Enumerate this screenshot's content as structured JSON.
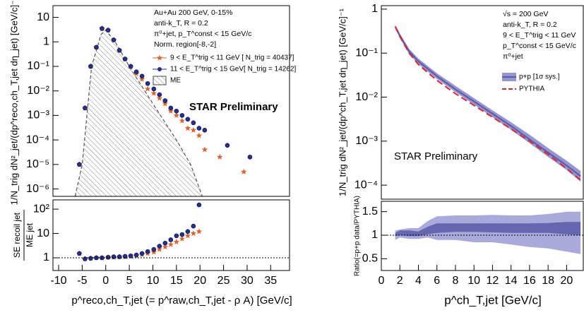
{
  "chart_data": [
    {
      "type": "scatter",
      "log_y": true,
      "xlim": [
        -11.2,
        39
      ],
      "ylim": [
        5e-07,
        30
      ],
      "ylabel": [
        "1/N_trig dN²_jet/(dp^reco,ch_T,jet dη_jet) [GeV/c]⁻¹"
      ],
      "yticks": [
        {
          "value": 1e-06,
          "label": "10⁻⁶"
        },
        {
          "value": 1e-05,
          "label": "10⁻⁵"
        },
        {
          "value": 0.0001,
          "label": "10⁻⁴"
        },
        {
          "value": 0.001,
          "label": "10⁻³"
        },
        {
          "value": 0.01,
          "label": "10⁻²"
        },
        {
          "value": 0.1,
          "label": "10⁻¹"
        },
        1,
        10
      ],
      "annotations": [
        "Au+Au 200 GeV, 0-15%",
        "anti-k_T, R = 0.2",
        "π⁰+jet, p_T^const < 15 GeV/c",
        "Norm. region[-8,-2]"
      ],
      "watermark": {
        "text": "STAR Preliminary",
        "color": "#f26b6b"
      },
      "series": [
        {
          "name": "ME",
          "type": "area",
          "color": "#555555",
          "x": [
            -6.5,
            -5,
            -3,
            -1,
            0,
            2,
            5,
            10,
            15,
            18,
            20.5
          ],
          "values": [
            5e-07,
            1e-05,
            0.1,
            2,
            3,
            1,
            0.1,
            0.003,
            0.0001,
            1e-05,
            5e-07
          ]
        },
        {
          "name": "9 < E_T^trig < 11 GeV [ N_trig = 40437]",
          "type": "scatter",
          "marker": "star",
          "color": "#e0602b",
          "x": [
            -5.6,
            -4.4,
            -3.2,
            -2,
            -0.8,
            0.5,
            1.7,
            2.9,
            4.1,
            5.3,
            6.5,
            7.7,
            8.9,
            10.2,
            11.4,
            12.6,
            13.8,
            15,
            16.2,
            17.4,
            18.6,
            19.8,
            21,
            24.2,
            29.3
          ],
          "values": [
            1e-05,
            0.002,
            0.1,
            0.6,
            3.5,
            3,
            1.2,
            0.45,
            0.2,
            0.1,
            0.05,
            0.03,
            0.012,
            0.008,
            0.005,
            0.003,
            0.0015,
            0.001,
            0.0006,
            0.0003,
            0.00025,
            0.00015,
            4e-05,
            2e-05,
            5e-06
          ]
        },
        {
          "name": "11 < E_T^trig < 15 GeV[ N_trig = 14262]",
          "type": "scatter",
          "marker": "circle",
          "color": "#1f2fa0",
          "x": [
            -5.6,
            -4.4,
            -3.2,
            -2,
            -0.8,
            0.5,
            1.7,
            2.9,
            4.1,
            5.3,
            6.5,
            7.7,
            8.9,
            10.2,
            11.4,
            12.6,
            13.8,
            15,
            16.2,
            17.4,
            18.6,
            19.8,
            21,
            25.8,
            30.6
          ],
          "values": [
            1e-05,
            0.002,
            0.1,
            0.6,
            3.5,
            3,
            1.2,
            0.45,
            0.2,
            0.1,
            0.06,
            0.04,
            0.02,
            0.012,
            0.007,
            0.004,
            0.002,
            0.0015,
            0.001,
            0.0007,
            0.0005,
            0.0003,
            0.00025,
            6e-05,
            2e-05
          ]
        }
      ]
    },
    {
      "type": "scatter",
      "log_y": true,
      "xlim": [
        -11.2,
        39
      ],
      "ylim": [
        0.3,
        240
      ],
      "hline": 1,
      "ylabel": [
        "SE recoil jet",
        "ME jet"
      ],
      "xlabel": "p^reco,ch_T,jet (= p^raw,ch_T,jet - ρ A) [GeV/c]",
      "xticks": [
        -10,
        -5,
        0,
        5,
        10,
        15,
        20,
        25,
        30,
        35
      ],
      "yticks": [
        1,
        10,
        {
          "value": 100,
          "label": "10²"
        }
      ],
      "series": [
        {
          "type": "scatter",
          "marker": "star",
          "color": "#e0602b",
          "x": [
            -5.6,
            -4.4,
            -3.2,
            -2,
            -0.8,
            0.5,
            1.7,
            2.9,
            4.1,
            5.3,
            6.5,
            7.7,
            8.9,
            10.2,
            11.4,
            12.6,
            13.8,
            15,
            16.2,
            17.4,
            18.6,
            19.8
          ],
          "values": [
            1.5,
            0.9,
            0.95,
            1,
            1,
            1.05,
            1.05,
            1.1,
            1.1,
            1.15,
            1.25,
            1.35,
            1.5,
            1.7,
            2.2,
            2.8,
            3.5,
            4.5,
            6,
            8,
            10,
            12
          ]
        },
        {
          "type": "scatter",
          "marker": "circle",
          "color": "#1f2fa0",
          "x": [
            -5.6,
            -4.4,
            -3.2,
            -2,
            -0.8,
            0.5,
            1.7,
            2.9,
            4.1,
            5.3,
            6.5,
            7.7,
            8.9,
            10.2,
            11.4,
            12.6,
            13.8,
            15,
            16.2,
            17.4,
            18.6,
            19.8
          ],
          "values": [
            1.5,
            0.9,
            0.95,
            1,
            1,
            1.05,
            1.1,
            1.1,
            1.15,
            1.2,
            1.3,
            1.5,
            1.8,
            2.2,
            3,
            4,
            5.5,
            8,
            9,
            12,
            20,
            150
          ]
        }
      ]
    },
    {
      "type": "line",
      "log_y": true,
      "xlim": [
        0,
        21.8
      ],
      "ylim": [
        4.8e-05,
        1.2
      ],
      "ylabel": [
        "1/N_trig dN²_jet/(dp^ch_T,jet dη_jet) [GeV/c]⁻¹"
      ],
      "yticks": [
        {
          "value": 0.0001,
          "label": "10⁻⁴"
        },
        {
          "value": 0.001,
          "label": "10⁻³"
        },
        {
          "value": 0.01,
          "label": "10⁻²"
        },
        {
          "value": 0.1,
          "label": "10⁻¹"
        },
        1
      ],
      "annotations": [
        "√s = 200 GeV",
        "anti-k_T, R = 0.2",
        "9 < E_T^trig < 11 GeV",
        "p_T^const < 15 GeV/c",
        "π⁰+jet"
      ],
      "watermark": {
        "text": "STAR Preliminary",
        "color": "#f26b6b"
      },
      "series": [
        {
          "name": "p+p [1σ sys.]",
          "type": "band",
          "color": "#9595d2",
          "line_color": "#5a5aa8",
          "x": [
            1.5,
            2,
            3,
            4,
            6,
            8,
            10,
            12,
            14,
            16,
            18,
            20,
            21.5
          ],
          "values": [
            0.4,
            0.25,
            0.11,
            0.065,
            0.03,
            0.015,
            0.008,
            0.0042,
            0.0022,
            0.0011,
            0.00055,
            0.00028,
            0.00016
          ],
          "low": [
            0.36,
            0.22,
            0.095,
            0.056,
            0.026,
            0.013,
            0.0068,
            0.0035,
            0.0018,
            0.0009,
            0.00044,
            0.00022,
            0.00012
          ],
          "high": [
            0.44,
            0.28,
            0.125,
            0.075,
            0.035,
            0.018,
            0.0095,
            0.005,
            0.0027,
            0.0014,
            0.0007,
            0.00036,
            0.00021
          ]
        },
        {
          "name": "PYTHIA",
          "type": "line",
          "color": "#e8202a",
          "x": [
            1.5,
            2,
            3,
            4,
            6,
            8,
            10,
            12,
            14,
            16,
            18,
            20,
            21.5
          ],
          "values": [
            0.4,
            0.24,
            0.1,
            0.055,
            0.024,
            0.012,
            0.0065,
            0.0035,
            0.0019,
            0.001,
            0.0005,
            0.00024,
            0.00013
          ]
        }
      ]
    },
    {
      "type": "area",
      "log_y": false,
      "xlim": [
        0,
        21.8
      ],
      "ylim": [
        0.25,
        1.72
      ],
      "hline": 1,
      "ylabel": [
        "Ratio(=p+p data/PYTHIA)"
      ],
      "xlabel": "p^ch_T,jet [GeV/c]",
      "xticks": [
        0,
        2,
        4,
        6,
        8,
        10,
        12,
        14,
        16,
        18,
        20
      ],
      "yticks": [
        0.5,
        1,
        1.5
      ],
      "series": [
        {
          "type": "band",
          "color": "#a9a9dc",
          "x": [
            1.5,
            2,
            3,
            4,
            5,
            6,
            8,
            10,
            12,
            14,
            16,
            18,
            20,
            21.5
          ],
          "low": [
            0.9,
            0.95,
            0.92,
            0.92,
            0.95,
            0.9,
            0.9,
            0.85,
            0.85,
            0.8,
            0.75,
            0.72,
            0.65,
            0.6
          ],
          "high": [
            1.1,
            1.12,
            1.15,
            1.15,
            1.3,
            1.4,
            1.42,
            1.42,
            1.43,
            1.42,
            1.42,
            1.45,
            1.5,
            1.5
          ]
        },
        {
          "type": "band",
          "color": "#6565b0",
          "x": [
            1.5,
            2,
            3,
            4,
            5,
            6,
            8,
            10,
            12,
            14,
            16,
            18,
            20,
            21.5
          ],
          "low": [
            0.98,
            1,
            0.98,
            0.98,
            1.02,
            1.05,
            1.07,
            1.07,
            1.06,
            1.05,
            1.05,
            1.05,
            1.02,
            1
          ],
          "high": [
            1.05,
            1.1,
            1.1,
            1.08,
            1.18,
            1.25,
            1.25,
            1.25,
            1.25,
            1.25,
            1.25,
            1.26,
            1.28,
            1.28
          ]
        }
      ]
    }
  ]
}
